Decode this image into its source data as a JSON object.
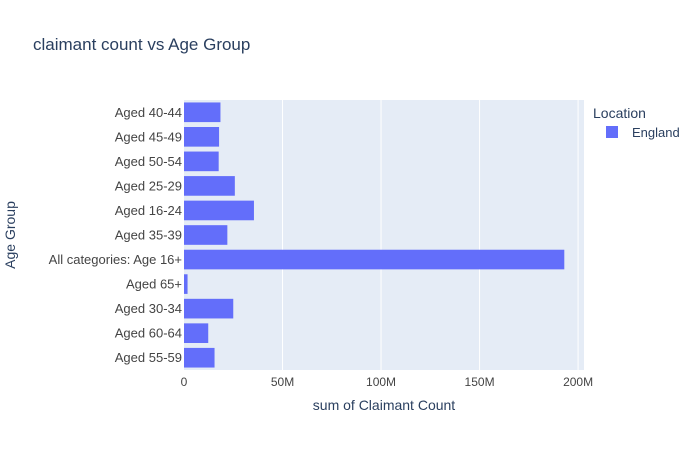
{
  "chart_data": {
    "type": "bar",
    "orientation": "horizontal",
    "title": "claimant count vs Age Group",
    "xlabel": "sum of Claimant Count",
    "ylabel": "Age Group",
    "xlim": [
      0,
      203000000
    ],
    "xticks": [
      {
        "value": 0,
        "label": "0"
      },
      {
        "value": 50000000,
        "label": "50M"
      },
      {
        "value": 100000000,
        "label": "100M"
      },
      {
        "value": 150000000,
        "label": "150M"
      },
      {
        "value": 200000000,
        "label": "200M"
      }
    ],
    "categories": [
      "Aged 40-44",
      "Aged 45-49",
      "Aged 50-54",
      "Aged 25-29",
      "Aged 16-24",
      "Aged 35-39",
      "All categories: Age 16+",
      "Aged 65+",
      "Aged 30-34",
      "Aged 60-64",
      "Aged 55-59"
    ],
    "series": [
      {
        "name": "England",
        "color": "#636efa",
        "values": [
          18500000,
          17800000,
          17600000,
          25800000,
          35500000,
          22000000,
          193000000,
          1800000,
          25000000,
          12300000,
          15500000
        ]
      }
    ],
    "grid": true,
    "legend": {
      "title": "Location",
      "position": "top-right"
    },
    "colors": {
      "plot_bg": "#e5ecf6",
      "grid": "#ffffff",
      "text": "#2a3f5f",
      "tick_text": "#444444"
    }
  }
}
